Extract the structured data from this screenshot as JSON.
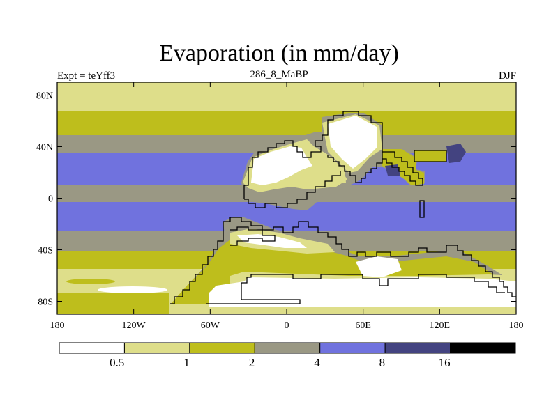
{
  "title": "Evaporation (in mm/day)",
  "labels": {
    "left": "Expt = teYff3",
    "center": "286_8_MaBP",
    "right": "DJF"
  },
  "colors": {
    "c0": "#ffffff",
    "c1": "#dede8a",
    "c2": "#bebe1c",
    "c3": "#9a9884",
    "c4": "#7072de",
    "c5": "#434380",
    "c6": "#000000",
    "coast": "#000000"
  },
  "map": {
    "x_ticks": [
      {
        "value": -180,
        "label": "180"
      },
      {
        "value": -120,
        "label": "120W"
      },
      {
        "value": -60,
        "label": "60W"
      },
      {
        "value": 0,
        "label": "0"
      },
      {
        "value": 60,
        "label": "60E"
      },
      {
        "value": 120,
        "label": "120E"
      },
      {
        "value": 180,
        "label": "180"
      }
    ],
    "y_ticks": [
      {
        "value": 80,
        "label": "80N"
      },
      {
        "value": 40,
        "label": "40N"
      },
      {
        "value": 0,
        "label": "0"
      },
      {
        "value": -40,
        "label": "40S"
      },
      {
        "value": -80,
        "label": "80S"
      }
    ],
    "lon_range": [
      -180,
      180
    ],
    "lat_range": [
      -90,
      90
    ]
  },
  "colorbar": {
    "boxes": [
      "c0",
      "c1",
      "c2",
      "c3",
      "c4",
      "c5",
      "c6"
    ],
    "levels": [
      "0.5",
      "1",
      "2",
      "4",
      "8",
      "16"
    ]
  }
}
